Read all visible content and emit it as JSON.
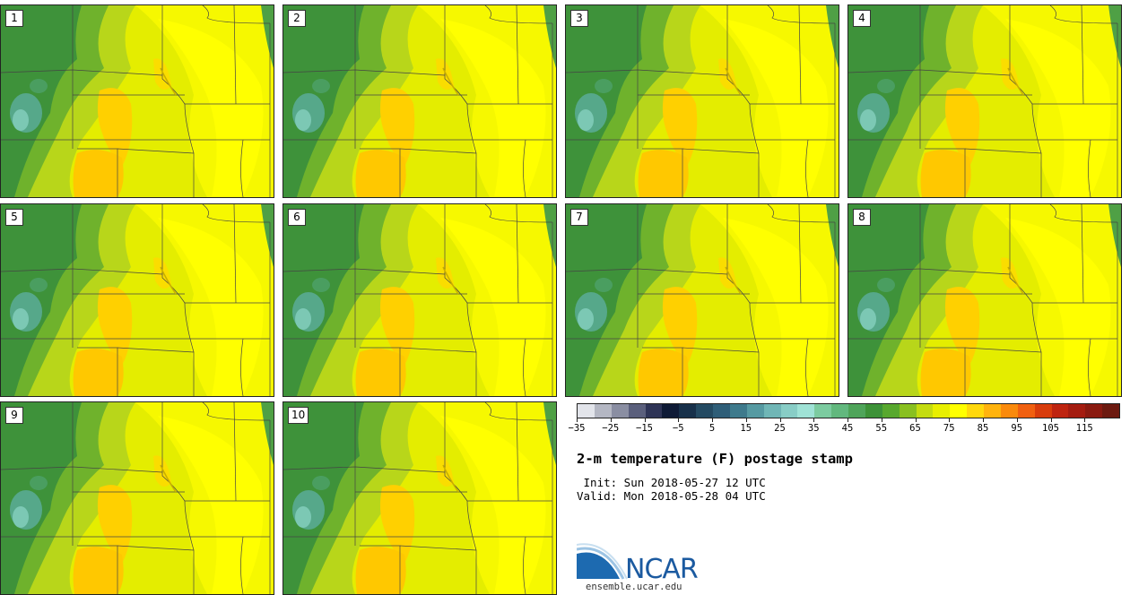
{
  "stamps": [
    {
      "label": "1"
    },
    {
      "label": "2"
    },
    {
      "label": "3"
    },
    {
      "label": "4"
    },
    {
      "label": "5"
    },
    {
      "label": "6"
    },
    {
      "label": "7"
    },
    {
      "label": "8"
    },
    {
      "label": "9"
    },
    {
      "label": "10"
    }
  ],
  "colorbar": {
    "colors": [
      "#e2e4ea",
      "#b4b7c3",
      "#8a8ea2",
      "#5a5f7c",
      "#2e3456",
      "#0e1a36",
      "#17304a",
      "#244a62",
      "#2f5e78",
      "#3e7a8c",
      "#569aa2",
      "#70b6b6",
      "#88cdc6",
      "#9fe2d6",
      "#7ccba0",
      "#62b87e",
      "#4fa45a",
      "#3d9238",
      "#58a82e",
      "#89c020",
      "#c4dc10",
      "#e8ef00",
      "#ffff00",
      "#ffd80c",
      "#ffb30e",
      "#fa8a0c",
      "#f06010",
      "#d83c0c",
      "#be2410",
      "#a41c10",
      "#8a1a10",
      "#6c1a10"
    ],
    "ticks": [
      "−35",
      "−25",
      "−15",
      "−5",
      "5",
      "15",
      "25",
      "35",
      "45",
      "55",
      "65",
      "75",
      "85",
      "95",
      "105",
      "115"
    ]
  },
  "title": "2-m temperature (F) postage stamp",
  "init_text": " Init: Sun 2018-05-27 12 UTC",
  "valid_text": "Valid: Mon 2018-05-28 04 UTC",
  "logo_text": "NCAR",
  "site": "ensemble.ucar.edu"
}
